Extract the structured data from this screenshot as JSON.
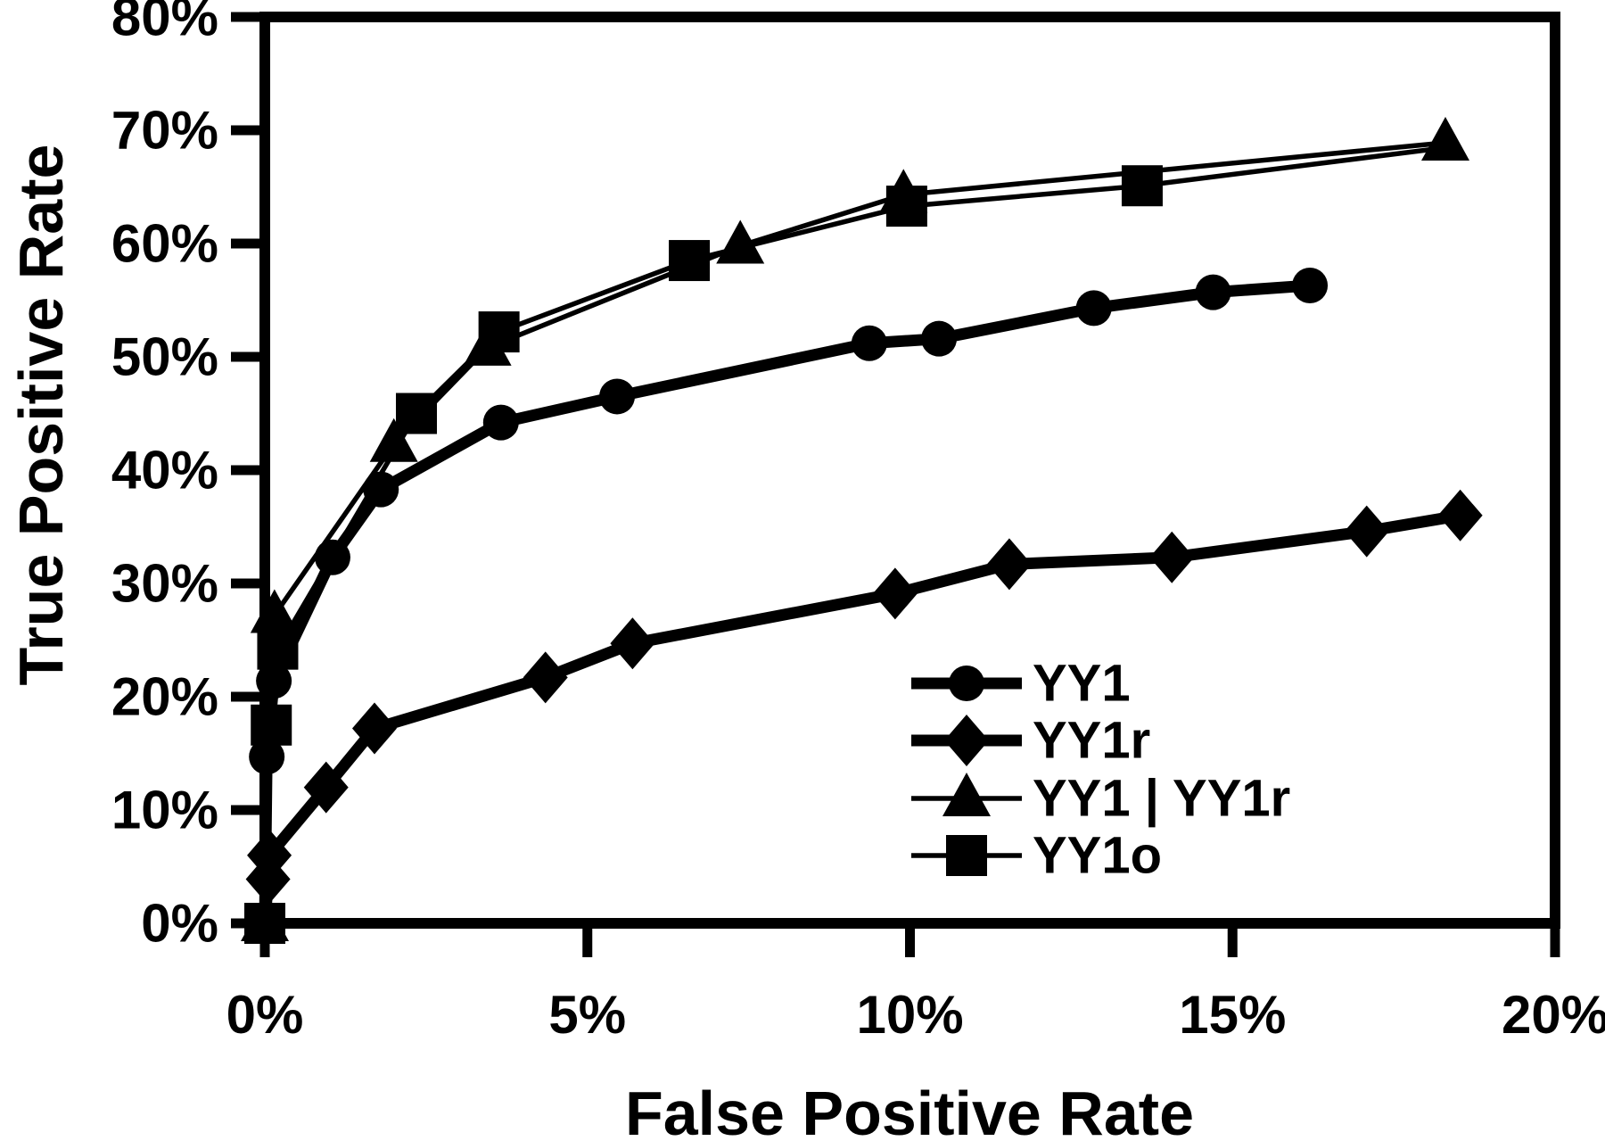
{
  "chart_data": {
    "type": "line",
    "title": "",
    "xlabel": "False Positive Rate",
    "ylabel": "True Positive Rate",
    "xlim": [
      0,
      20
    ],
    "ylim": [
      0,
      80
    ],
    "x_ticks": [
      0,
      5,
      10,
      15,
      20
    ],
    "y_ticks": [
      0,
      10,
      20,
      30,
      40,
      50,
      60,
      70,
      80
    ],
    "tick_suffix": "%",
    "grid": false,
    "frame": true,
    "legend_position": "lower-right-inside",
    "series": [
      {
        "name": "YY1",
        "marker": "circle",
        "line_style": "thick",
        "points": [
          [
            0,
            0
          ],
          [
            0.03,
            14.7
          ],
          [
            0.14,
            21.4
          ],
          [
            1.05,
            32.3
          ],
          [
            1.8,
            38.3
          ],
          [
            3.66,
            44.2
          ],
          [
            5.46,
            46.5
          ],
          [
            9.37,
            51.2
          ],
          [
            10.45,
            51.6
          ],
          [
            12.85,
            54.3
          ],
          [
            14.7,
            55.7
          ],
          [
            16.2,
            56.3
          ]
        ]
      },
      {
        "name": "YY1r",
        "marker": "diamond",
        "line_style": "thick",
        "points": [
          [
            0,
            0
          ],
          [
            0.05,
            3.9
          ],
          [
            0.07,
            6.0
          ],
          [
            0.95,
            12.0
          ],
          [
            1.7,
            17.2
          ],
          [
            4.35,
            21.7
          ],
          [
            5.7,
            24.7
          ],
          [
            9.77,
            29.1
          ],
          [
            11.54,
            31.7
          ],
          [
            14.06,
            32.3
          ],
          [
            17.08,
            34.6
          ],
          [
            18.53,
            36.0
          ]
        ]
      },
      {
        "name": "YY1 | YY1r",
        "marker": "triangle",
        "line_style": "thin",
        "points": [
          [
            0,
            0
          ],
          [
            0.15,
            27.2
          ],
          [
            2.0,
            42.3
          ],
          [
            3.45,
            50.8
          ],
          [
            7.37,
            59.8
          ],
          [
            9.9,
            64.3
          ],
          [
            18.3,
            68.9
          ]
        ]
      },
      {
        "name": "YY1o",
        "marker": "square",
        "line_style": "thin",
        "points": [
          [
            0,
            0
          ],
          [
            0.1,
            17.5
          ],
          [
            0.2,
            24.2
          ],
          [
            2.35,
            45.0
          ],
          [
            3.63,
            52.2
          ],
          [
            6.58,
            58.5
          ],
          [
            9.95,
            63.3
          ],
          [
            13.6,
            65.1
          ]
        ],
        "line_end": [
          18.35,
          68.5
        ]
      }
    ]
  },
  "colors": {
    "ink": "#000000",
    "background": "#ffffff"
  }
}
